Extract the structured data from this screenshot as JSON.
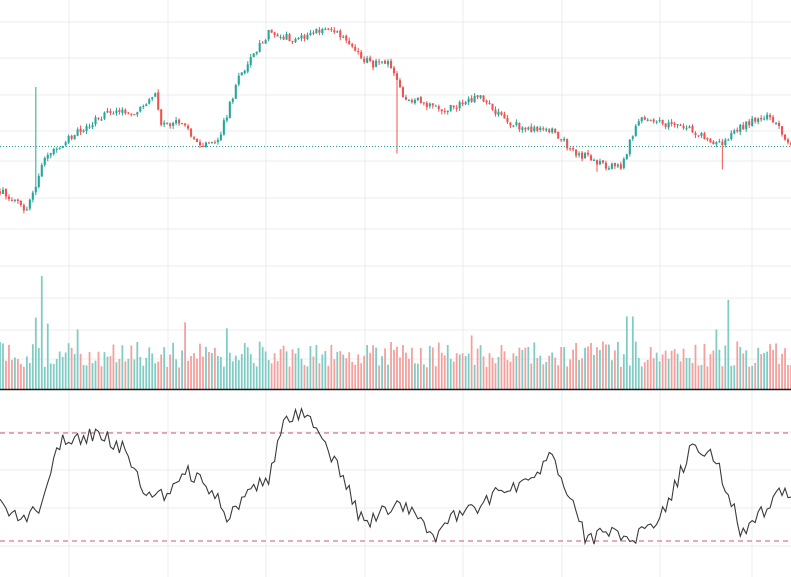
{
  "colors": {
    "up": "#26a69a",
    "down": "#ef5350",
    "up_volume": "#80cbc4",
    "down_volume": "#f4a09d",
    "grid": "#e8ecf0",
    "oscillator_line": "#3a3a3a",
    "oscillator_bands": "#d05a6a",
    "last_price_line": "#26a69a",
    "separator": "#1a1a1a"
  },
  "chart_data": [
    {
      "type": "candlestick",
      "name": "price",
      "grid": true,
      "ylim": [
        100,
        200
      ],
      "last_price": 136,
      "close_anchors": [
        [
          0,
          117
        ],
        [
          5,
          112
        ],
        [
          9,
          108
        ],
        [
          15,
          132
        ],
        [
          22,
          138
        ],
        [
          30,
          146
        ],
        [
          38,
          152
        ],
        [
          46,
          151
        ],
        [
          52,
          158
        ],
        [
          54,
          146
        ],
        [
          62,
          146
        ],
        [
          66,
          137
        ],
        [
          73,
          138
        ],
        [
          80,
          166
        ],
        [
          90,
          186
        ],
        [
          98,
          183
        ],
        [
          110,
          188
        ],
        [
          116,
          182
        ],
        [
          124,
          172
        ],
        [
          130,
          172
        ],
        [
          135,
          158
        ],
        [
          142,
          155
        ],
        [
          150,
          152
        ],
        [
          155,
          155
        ],
        [
          160,
          158
        ],
        [
          165,
          152
        ],
        [
          170,
          147
        ],
        [
          176,
          144
        ],
        [
          185,
          143
        ],
        [
          192,
          134
        ],
        [
          202,
          128
        ],
        [
          208,
          127
        ],
        [
          214,
          148
        ],
        [
          222,
          146
        ],
        [
          232,
          143
        ],
        [
          241,
          137
        ],
        [
          250,
          146
        ],
        [
          258,
          149
        ],
        [
          265,
          136
        ]
      ],
      "wick_spikes": [
        {
          "index": 12,
          "high": 162
        },
        {
          "index": 133,
          "low": 133
        },
        {
          "index": 200,
          "low": 125
        },
        {
          "index": 242,
          "low": 126
        }
      ]
    },
    {
      "type": "bar",
      "name": "volume",
      "grid": true,
      "ylim": [
        0,
        100
      ],
      "tall_bars": [
        {
          "index": 14,
          "value": 95
        },
        {
          "index": 12,
          "value": 60
        },
        {
          "index": 16,
          "value": 55
        },
        {
          "index": 26,
          "value": 50
        },
        {
          "index": 62,
          "value": 56
        },
        {
          "index": 76,
          "value": 51
        },
        {
          "index": 158,
          "value": 45
        },
        {
          "index": 210,
          "value": 61
        },
        {
          "index": 212,
          "value": 61
        },
        {
          "index": 244,
          "value": 75
        },
        {
          "index": 240,
          "value": 50
        },
        {
          "index": 265,
          "value": 20
        }
      ]
    },
    {
      "type": "line",
      "name": "oscillator",
      "grid": true,
      "ylim": [
        0,
        100
      ],
      "bands": [
        80,
        20
      ],
      "anchors": [
        [
          0,
          45
        ],
        [
          3,
          38
        ],
        [
          8,
          30
        ],
        [
          14,
          40
        ],
        [
          20,
          75
        ],
        [
          26,
          78
        ],
        [
          34,
          80
        ],
        [
          42,
          70
        ],
        [
          48,
          50
        ],
        [
          55,
          45
        ],
        [
          62,
          60
        ],
        [
          70,
          50
        ],
        [
          76,
          35
        ],
        [
          82,
          45
        ],
        [
          90,
          55
        ],
        [
          95,
          85
        ],
        [
          102,
          92
        ],
        [
          110,
          70
        ],
        [
          115,
          55
        ],
        [
          122,
          28
        ],
        [
          128,
          36
        ],
        [
          134,
          40
        ],
        [
          140,
          32
        ],
        [
          146,
          22
        ],
        [
          152,
          35
        ],
        [
          160,
          38
        ],
        [
          166,
          46
        ],
        [
          172,
          48
        ],
        [
          178,
          55
        ],
        [
          184,
          68
        ],
        [
          190,
          48
        ],
        [
          196,
          22
        ],
        [
          204,
          24
        ],
        [
          212,
          20
        ],
        [
          220,
          30
        ],
        [
          226,
          50
        ],
        [
          232,
          72
        ],
        [
          238,
          70
        ],
        [
          244,
          48
        ],
        [
          248,
          25
        ],
        [
          252,
          30
        ],
        [
          258,
          40
        ],
        [
          262,
          48
        ],
        [
          265,
          40
        ]
      ]
    }
  ]
}
